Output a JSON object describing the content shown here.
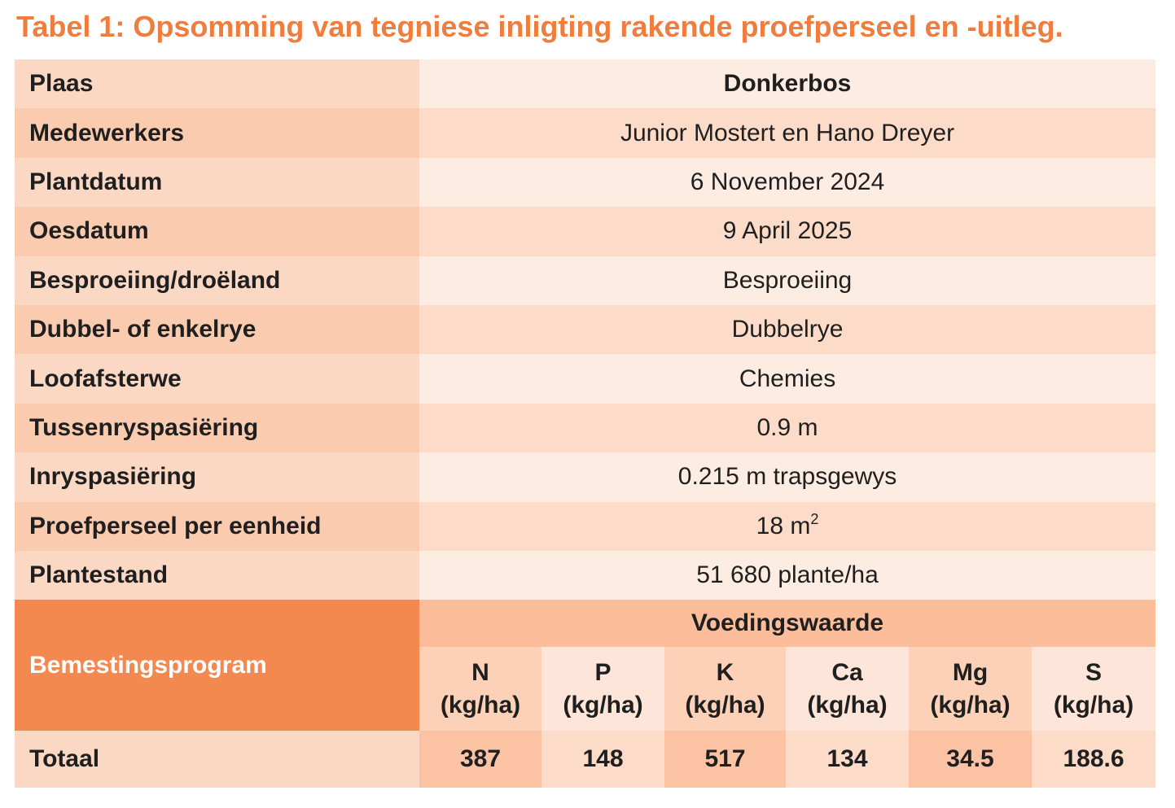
{
  "title": "Tabel 1: Opsomming van tegniese inligting rakende proefperseel en -uitleg.",
  "rows": [
    {
      "label": "Plaas",
      "value": "Donkerbos"
    },
    {
      "label": "Medewerkers",
      "value": "Junior Mostert en Hano Dreyer"
    },
    {
      "label": "Plantdatum",
      "value": "6 November 2024"
    },
    {
      "label": "Oesdatum",
      "value": "9 April 2025"
    },
    {
      "label": "Besproeiing/droëland",
      "value": "Besproeiing"
    },
    {
      "label": "Dubbel- of enkelrye",
      "value": "Dubbelrye"
    },
    {
      "label": "Loofafsterwe",
      "value": "Chemies"
    },
    {
      "label": "Tussenryspasiëring",
      "value": "0.9 m"
    },
    {
      "label": "Inryspasiëring",
      "value": "0.215 m trapsgewys"
    },
    {
      "label": "Proefperseel per eenheid",
      "value": "18 m",
      "value_sup": "2"
    },
    {
      "label": "Plantestand",
      "value": "51 680 plante/ha"
    }
  ],
  "fertilizer": {
    "label": "Bemestingsprogram",
    "group_header": "Voedingswaarde",
    "nutrients": [
      {
        "symbol": "N",
        "unit": "(kg/ha)"
      },
      {
        "symbol": "P",
        "unit": "(kg/ha)"
      },
      {
        "symbol": "K",
        "unit": "(kg/ha)"
      },
      {
        "symbol": "Ca",
        "unit": "(kg/ha)"
      },
      {
        "symbol": "Mg",
        "unit": "(kg/ha)"
      },
      {
        "symbol": "S",
        "unit": "(kg/ha)"
      }
    ],
    "total_label": "Totaal",
    "totals": [
      "387",
      "148",
      "517",
      "134",
      "34.5",
      "188.6"
    ]
  }
}
